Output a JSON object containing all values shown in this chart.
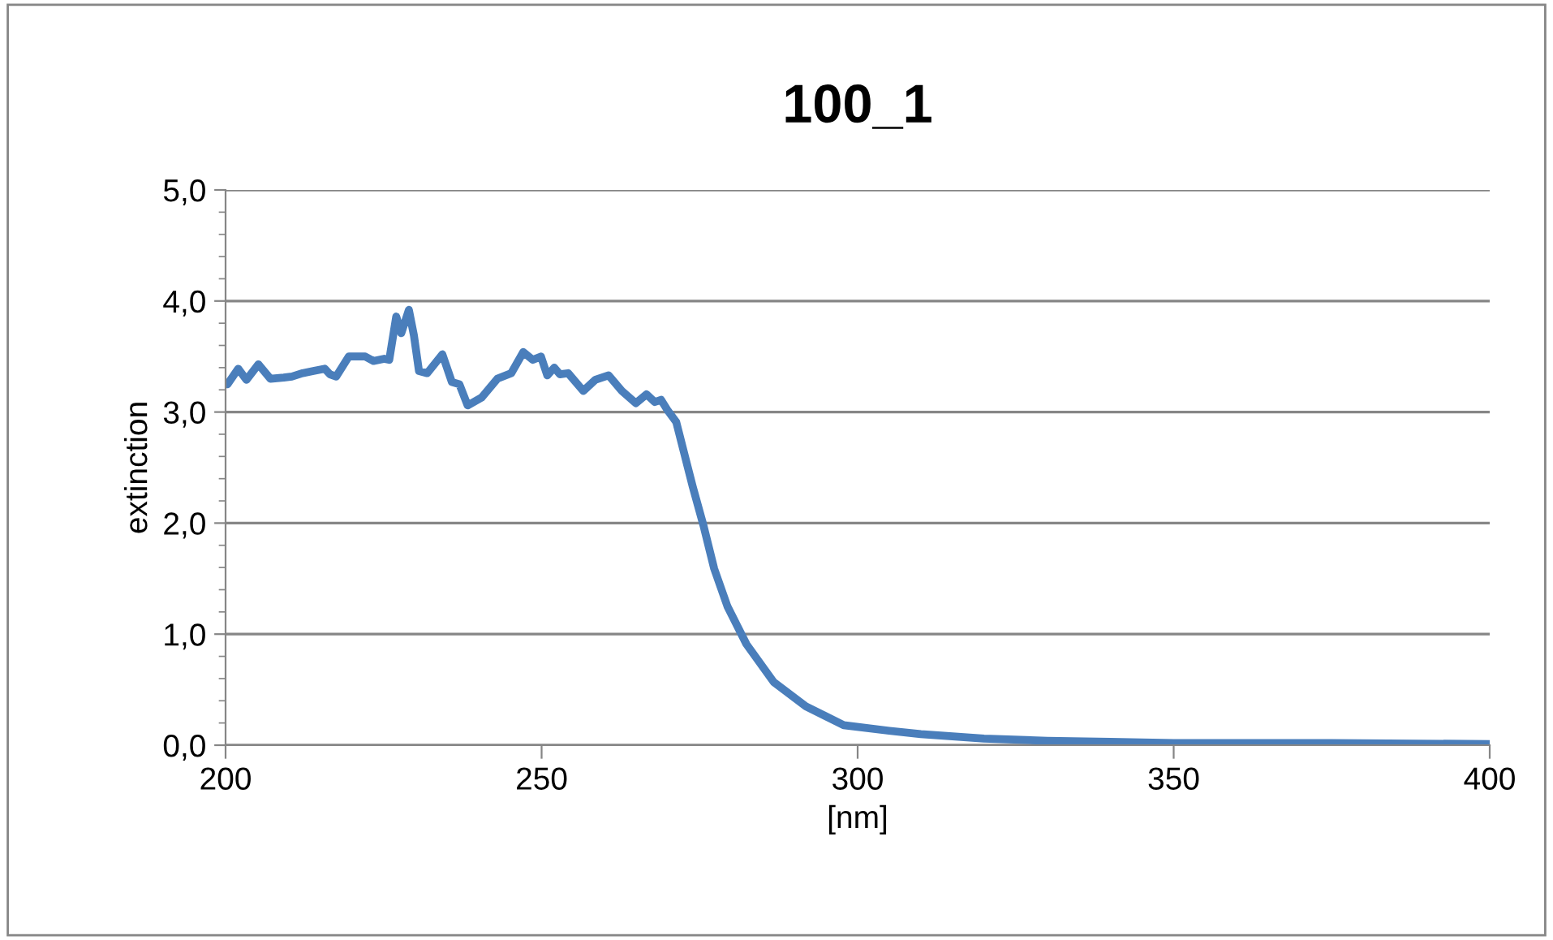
{
  "chart_data": {
    "type": "line",
    "title": "100_1",
    "xlabel": "[nm]",
    "ylabel": "extinction",
    "xlim": [
      200,
      400
    ],
    "xticks": [
      200,
      250,
      300,
      350,
      400
    ],
    "ylim": [
      0,
      5
    ],
    "yticks": [
      {
        "value": 0,
        "label": "0,0"
      },
      {
        "value": 1,
        "label": "1,0"
      },
      {
        "value": 2,
        "label": "2,0"
      },
      {
        "value": 3,
        "label": "3,0"
      },
      {
        "value": 4,
        "label": "4,0"
      },
      {
        "value": 5,
        "label": "5,0"
      }
    ],
    "grid": "y",
    "legend": false,
    "marker": "none",
    "line_style": "solid",
    "series": [
      {
        "color": "#4a7ebb",
        "x": [
          200.3,
          202,
          203.3,
          205.2,
          207.1,
          209.2,
          210.5,
          212.2,
          213.9,
          215.7,
          216.5,
          217.5,
          219.5,
          222.1,
          223.4,
          225.1,
          225.9,
          227,
          227.8,
          229,
          229.8,
          230.6,
          231.9,
          234.3,
          235.8,
          237,
          238.3,
          240.5,
          243,
          245.2,
          247.1,
          248.6,
          249.9,
          250.9,
          252,
          252.9,
          254.2,
          256.6,
          258.5,
          260.6,
          262.7,
          264.9,
          266.6,
          267.9,
          268.9,
          270,
          271.3,
          272.6,
          273.9,
          275.6,
          277.3,
          279.4,
          282.4,
          286.7,
          291.8,
          297.8,
          305,
          310,
          320,
          330,
          340,
          350,
          375,
          400
        ],
        "values": [
          3.25,
          3.39,
          3.29,
          3.43,
          3.3,
          3.31,
          3.32,
          3.35,
          3.37,
          3.39,
          3.34,
          3.32,
          3.5,
          3.5,
          3.46,
          3.48,
          3.47,
          3.86,
          3.71,
          3.92,
          3.69,
          3.37,
          3.35,
          3.52,
          3.27,
          3.25,
          3.06,
          3.13,
          3.3,
          3.35,
          3.54,
          3.47,
          3.5,
          3.33,
          3.4,
          3.34,
          3.35,
          3.19,
          3.29,
          3.33,
          3.19,
          3.08,
          3.16,
          3.09,
          3.11,
          3.01,
          2.91,
          2.62,
          2.33,
          1.98,
          1.59,
          1.25,
          0.91,
          0.57,
          0.35,
          0.18,
          0.13,
          0.1,
          0.06,
          0.04,
          0.03,
          0.02,
          0.02,
          0.01
        ]
      }
    ]
  }
}
